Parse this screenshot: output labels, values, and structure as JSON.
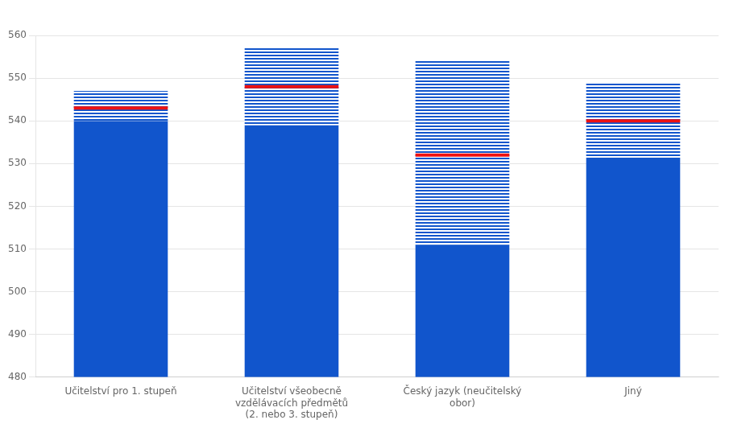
{
  "chart_data": {
    "type": "bar",
    "categories": [
      "Učitelství pro 1. stupeň",
      "Učitelství všeobecně\nvzdělávacích předmětů\n(2. nebo 3. stupeň)",
      "Český jazyk (neučitelský\nobor)",
      "Jiný"
    ],
    "baseline": 480,
    "series": [
      {
        "type": "bar",
        "color": "#1155CC",
        "values": [
          540,
          539,
          511,
          531
        ],
        "ci_upper": [
          547,
          557,
          554,
          549
        ]
      },
      {
        "type": "scatter",
        "marker": "line",
        "color": "#EE1111",
        "values": [
          543,
          548,
          532,
          540
        ]
      }
    ],
    "ylim": [
      480,
      560
    ],
    "yticks": [
      480,
      490,
      500,
      510,
      520,
      530,
      540,
      550,
      560
    ],
    "grid": true
  }
}
